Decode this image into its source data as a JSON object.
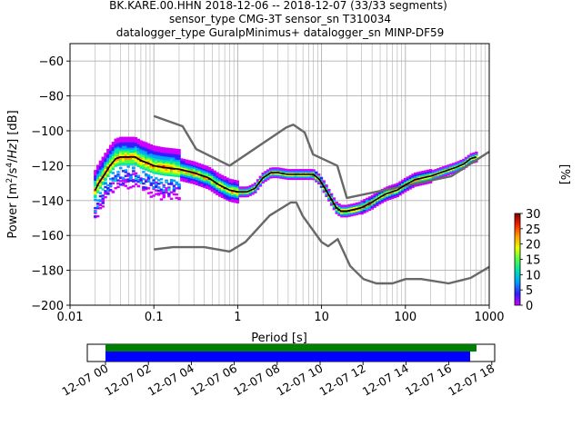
{
  "title": {
    "line1": "BK.KARE.00.HHN   2018-12-06 -- 2018-12-07  (33/33 segments)",
    "line2": "sensor_type CMG-3T sensor_sn T310034",
    "line3": "datalogger_type GuralpMinimus+ datalogger_sn MINP-DF59"
  },
  "colorbar": {
    "label": "[%]",
    "ticks": [
      "0",
      "5",
      "10",
      "15",
      "20",
      "25",
      "30"
    ],
    "range": [
      0,
      30
    ],
    "colors": [
      "#d000ff",
      "#3020ff",
      "#00a0ff",
      "#00e0b0",
      "#50ff40",
      "#e8ff00",
      "#ffa000",
      "#ff2000",
      "#7a0000"
    ]
  },
  "time_axis": {
    "labels": [
      "12-07 00",
      "12-07 02",
      "12-07 04",
      "12-07 06",
      "12-07 08",
      "12-07 10",
      "12-07 12",
      "12-07 14",
      "12-07 16",
      "12-07 18"
    ],
    "colors": {
      "green": "#008000",
      "blue": "#0000ff"
    }
  },
  "chart_data": {
    "type": "heatmap",
    "xlabel": "Period [s]",
    "ylabel": "Power [m^2/s^4/Hz] [dB]",
    "xscale": "log",
    "xlim": [
      0.01,
      1000
    ],
    "ylim": [
      -200,
      -50
    ],
    "xticks": [
      "0.01",
      "0.1",
      "1",
      "10",
      "100",
      "1000"
    ],
    "yticks": [
      "−200",
      "−180",
      "−160",
      "−140",
      "−120",
      "−100",
      "−80",
      "−60"
    ],
    "grid": true,
    "series": [
      {
        "name": "mean",
        "color": "#000000",
        "x": [
          0.02,
          0.022,
          0.025,
          0.03,
          0.035,
          0.04,
          0.05,
          0.06,
          0.07,
          0.08,
          0.1,
          0.13,
          0.2,
          0.3,
          0.45,
          0.6,
          0.8,
          1.0,
          1.3,
          1.6,
          2.0,
          2.5,
          3.0,
          4.0,
          5.0,
          6.0,
          8.0,
          9.5,
          11,
          13,
          15,
          17,
          20,
          25,
          30,
          40,
          50,
          60,
          80,
          100,
          130,
          200,
          300,
          400,
          500,
          600,
          700
        ],
        "y": [
          -134,
          -130,
          -126,
          -120,
          -116,
          -115,
          -115,
          -115,
          -117,
          -118,
          -120,
          -121,
          -122,
          -124,
          -127,
          -131,
          -134,
          -135,
          -135,
          -133,
          -127,
          -124,
          -124,
          -125,
          -125,
          -125,
          -125,
          -128,
          -133,
          -139,
          -144,
          -146,
          -146,
          -145,
          -144,
          -141,
          -138,
          -136,
          -134,
          -131,
          -128,
          -126,
          -123,
          -121,
          -119,
          -116,
          -115
        ]
      }
    ],
    "noise_models": [
      {
        "name": "high",
        "color": "#686868",
        "x": [
          0.1,
          0.22,
          0.32,
          0.8,
          3.8,
          4.6,
          6.3,
          7.9,
          15.4,
          20,
          354.8,
          1000
        ],
        "y": [
          -91.5,
          -97.4,
          -110.5,
          -120,
          -98,
          -96.5,
          -101,
          -113.5,
          -120,
          -138.5,
          -126,
          -112
        ]
      },
      {
        "name": "low",
        "color": "#686868",
        "x": [
          0.1,
          0.17,
          0.4,
          0.8,
          1.24,
          2.4,
          4.3,
          5,
          6,
          10,
          12,
          15.6,
          21.9,
          31.6,
          45,
          70,
          101,
          154,
          328,
          600,
          1000
        ],
        "y": [
          -168,
          -166.7,
          -166.7,
          -169.2,
          -163.7,
          -148.6,
          -141.1,
          -141.1,
          -149,
          -163.8,
          -166.2,
          -162.1,
          -177.5,
          -185,
          -187.5,
          -187.5,
          -185,
          -185,
          -187.5,
          -184.4,
          -178
        ]
      }
    ]
  }
}
